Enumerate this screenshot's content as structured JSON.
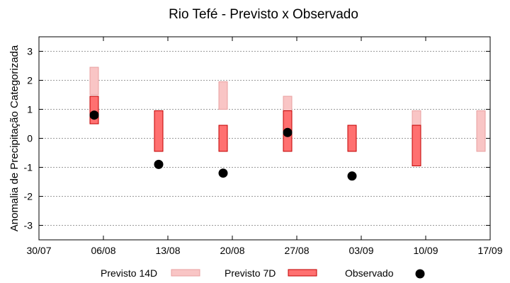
{
  "chart_data": {
    "type": "range-bar+scatter",
    "title": "Rio Tefé - Previsto x Observado",
    "ylabel": "Anomalia de Precipitação Categorizada",
    "xlabel": "",
    "xlim": [
      "2023-07-30",
      "2023-09-17"
    ],
    "ylim": [
      -3.5,
      3.5
    ],
    "yticks": [
      -3,
      -2,
      -1,
      0,
      1,
      2,
      3
    ],
    "xticks": [
      {
        "date": "2023-07-30",
        "label": "30/07"
      },
      {
        "date": "2023-08-06",
        "label": "06/08"
      },
      {
        "date": "2023-08-13",
        "label": "13/08"
      },
      {
        "date": "2023-08-20",
        "label": "20/08"
      },
      {
        "date": "2023-08-27",
        "label": "27/08"
      },
      {
        "date": "2023-09-03",
        "label": "03/09"
      },
      {
        "date": "2023-09-10",
        "label": "10/09"
      },
      {
        "date": "2023-09-17",
        "label": "17/09"
      }
    ],
    "grid": true,
    "legend_position": "bottom",
    "series": [
      {
        "name": "Previsto 14D",
        "kind": "range",
        "fill": "#f9c5c5",
        "stroke": "#e8a0a0",
        "points": [
          {
            "x": "2023-08-05",
            "low": 1.5,
            "high": 2.45
          },
          {
            "x": "2023-08-12",
            "low": -0.45,
            "high": 0.95
          },
          {
            "x": "2023-08-19",
            "low": 1.0,
            "high": 1.95
          },
          {
            "x": "2023-08-26",
            "low": 0.5,
            "high": 1.45
          },
          {
            "x": "2023-09-02",
            "low": -0.45,
            "high": 0.45
          },
          {
            "x": "2023-09-09",
            "low": -0.45,
            "high": 0.95
          },
          {
            "x": "2023-09-16",
            "low": -0.45,
            "high": 0.95
          }
        ]
      },
      {
        "name": "Previsto 7D",
        "kind": "range",
        "fill": "#ff7070",
        "stroke": "#c00000",
        "points": [
          {
            "x": "2023-08-05",
            "low": 0.5,
            "high": 1.45
          },
          {
            "x": "2023-08-12",
            "low": -0.45,
            "high": 0.95
          },
          {
            "x": "2023-08-19",
            "low": -0.45,
            "high": 0.45
          },
          {
            "x": "2023-08-26",
            "low": -0.45,
            "high": 0.95
          },
          {
            "x": "2023-09-02",
            "low": -0.45,
            "high": 0.45
          },
          {
            "x": "2023-09-09",
            "low": -0.95,
            "high": 0.45
          }
        ]
      },
      {
        "name": "Observado",
        "kind": "point",
        "color": "#000000",
        "points": [
          {
            "x": "2023-08-05",
            "y": 0.8
          },
          {
            "x": "2023-08-12",
            "y": -0.9
          },
          {
            "x": "2023-08-19",
            "y": -1.2
          },
          {
            "x": "2023-08-26",
            "y": 0.2
          },
          {
            "x": "2023-09-02",
            "y": -1.3
          }
        ]
      }
    ]
  }
}
